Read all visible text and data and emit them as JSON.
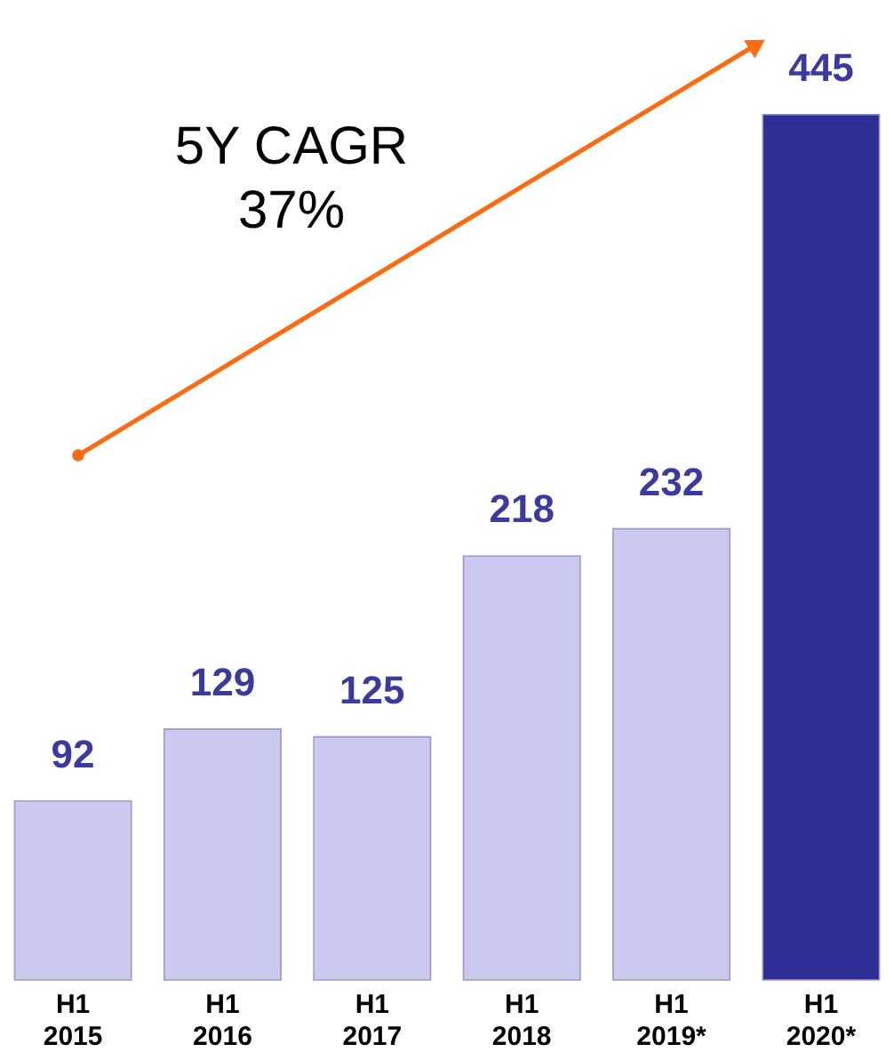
{
  "chart_data": {
    "type": "bar",
    "categories": [
      "H1\n2015",
      "H1\n2016",
      "H1\n2017",
      "H1\n2018",
      "H1\n2019*",
      "H1\n2020*"
    ],
    "values": [
      92,
      129,
      125,
      218,
      232,
      445
    ],
    "colors": [
      "#cacaf0",
      "#cacaf0",
      "#cacaf0",
      "#cacaf0",
      "#cacaf0",
      "#2e2e96"
    ],
    "data_labels": true,
    "annotations": [
      "5Y CAGR\n37%"
    ],
    "grid": false
  }
}
